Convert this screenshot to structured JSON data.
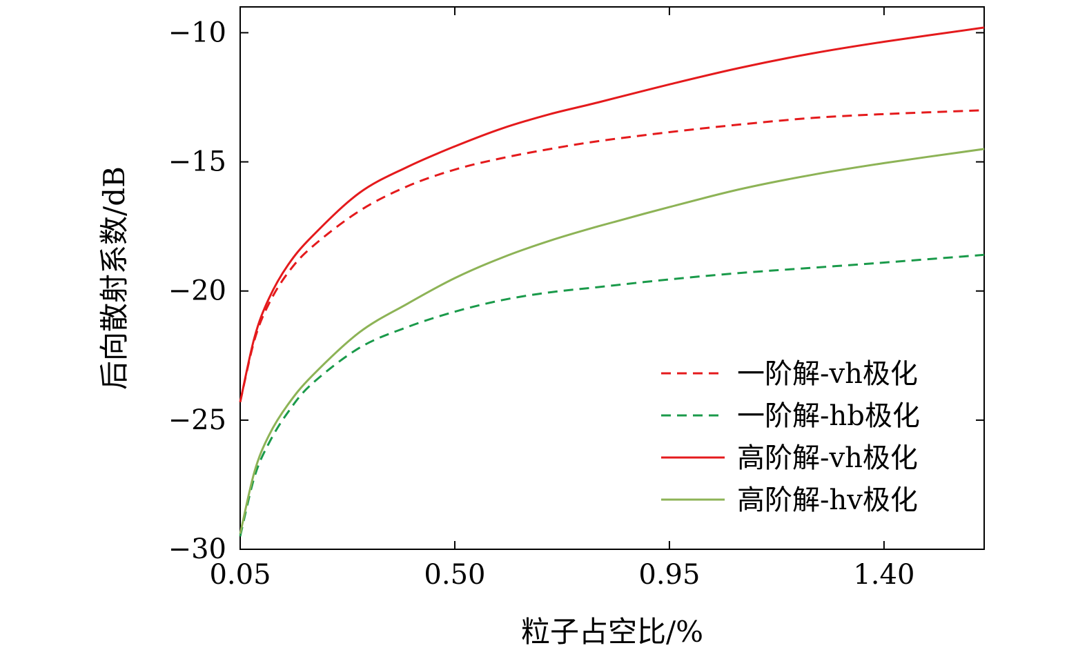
{
  "chart_data": {
    "type": "line",
    "title": "",
    "xlabel": "粒子占空比/%",
    "ylabel": "后向散射系数/dB",
    "xlim": [
      0.05,
      1.61
    ],
    "ylim": [
      -30,
      -9
    ],
    "xticks": [
      0.05,
      0.5,
      0.95,
      1.4
    ],
    "xtick_labels": [
      "0.05",
      "0.50",
      "0.95",
      "1.40"
    ],
    "yticks": [
      -10,
      -15,
      -20,
      -25,
      -30
    ],
    "ytick_labels": [
      "−10",
      "−15",
      "−20",
      "−25",
      "−30"
    ],
    "grid": false,
    "legend_position": "bottom-right",
    "series": [
      {
        "name": "一阶解-vh极化",
        "color": "#e41a1c",
        "dash": true,
        "x": [
          0.05,
          0.08,
          0.11,
          0.15,
          0.2,
          0.3,
          0.4,
          0.5,
          0.6,
          0.7,
          0.8,
          0.95,
          1.1,
          1.25,
          1.4,
          1.61
        ],
        "y": [
          -24.3,
          -21.9,
          -20.5,
          -19.3,
          -18.3,
          -16.9,
          -15.95,
          -15.3,
          -14.85,
          -14.5,
          -14.2,
          -13.85,
          -13.55,
          -13.3,
          -13.15,
          -13.0
        ]
      },
      {
        "name": "一阶解-hb极化",
        "color": "#1a9a4a",
        "dash": true,
        "x": [
          0.05,
          0.08,
          0.11,
          0.15,
          0.2,
          0.3,
          0.4,
          0.5,
          0.6,
          0.7,
          0.8,
          0.95,
          1.1,
          1.25,
          1.4,
          1.61
        ],
        "y": [
          -29.5,
          -27.2,
          -25.9,
          -24.7,
          -23.6,
          -22.2,
          -21.4,
          -20.8,
          -20.35,
          -20.05,
          -19.85,
          -19.55,
          -19.3,
          -19.1,
          -18.9,
          -18.6
        ]
      },
      {
        "name": "高阶解-vh极化",
        "color": "#e41a1c",
        "dash": false,
        "x": [
          0.05,
          0.08,
          0.11,
          0.15,
          0.2,
          0.3,
          0.4,
          0.5,
          0.6,
          0.7,
          0.8,
          0.95,
          1.1,
          1.25,
          1.4,
          1.61
        ],
        "y": [
          -24.3,
          -21.8,
          -20.3,
          -19.0,
          -17.9,
          -16.2,
          -15.2,
          -14.4,
          -13.7,
          -13.15,
          -12.7,
          -12.0,
          -11.35,
          -10.8,
          -10.35,
          -9.8
        ]
      },
      {
        "name": "高阶解-hv极化",
        "color": "#8db356",
        "dash": false,
        "x": [
          0.05,
          0.08,
          0.11,
          0.15,
          0.2,
          0.3,
          0.4,
          0.5,
          0.6,
          0.7,
          0.8,
          0.95,
          1.1,
          1.25,
          1.4,
          1.61
        ],
        "y": [
          -29.4,
          -27.0,
          -25.6,
          -24.4,
          -23.3,
          -21.6,
          -20.5,
          -19.5,
          -18.7,
          -18.05,
          -17.5,
          -16.75,
          -16.05,
          -15.5,
          -15.05,
          -14.5
        ]
      }
    ]
  }
}
